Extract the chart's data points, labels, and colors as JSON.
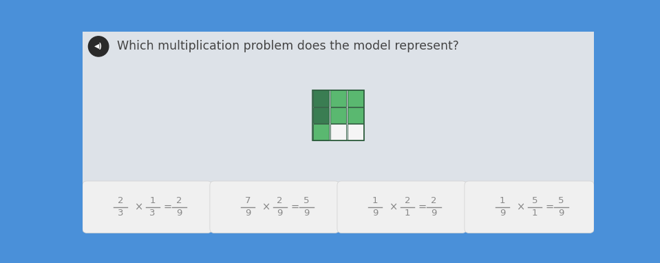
{
  "title": "Which multiplication problem does the model represent?",
  "background_color": "#4a90d9",
  "header_bg": "#e2e6ea",
  "main_panel_bg": "#dde2e8",
  "grid_cell_colors": [
    [
      "#3a7d52",
      "#5ab870",
      "#5ab870"
    ],
    [
      "#3a7d52",
      "#5ab870",
      "#5ab870"
    ],
    [
      "#5ab870",
      "#f5f5f5",
      "#f5f5f5"
    ]
  ],
  "grid_line_color": "#2a5a3a",
  "option_box_color": "#f0f0f0",
  "option_text_color": "#888888",
  "fractions": [
    [
      [
        "2",
        "3"
      ],
      [
        "1",
        "3"
      ],
      [
        "2",
        "9"
      ]
    ],
    [
      [
        "7",
        "9"
      ],
      [
        "2",
        "9"
      ],
      [
        "5",
        "9"
      ]
    ],
    [
      [
        "1",
        "9"
      ],
      [
        "2",
        "1"
      ],
      [
        "2",
        "9"
      ]
    ],
    [
      [
        "1",
        "9"
      ],
      [
        "5",
        "1"
      ],
      [
        "5",
        "9"
      ]
    ]
  ]
}
